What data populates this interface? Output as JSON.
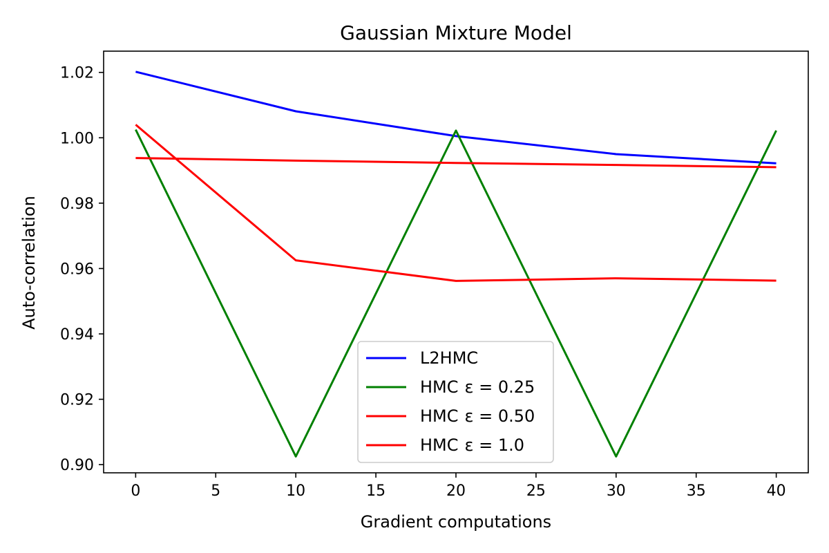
{
  "chart_data": {
    "type": "line",
    "title": "Gaussian Mixture Model",
    "xlabel": "Gradient computations",
    "ylabel": "Auto-correlation",
    "xlim": [
      -2,
      42
    ],
    "ylim": [
      0.8975,
      1.0265
    ],
    "xticks": [
      0,
      5,
      10,
      15,
      20,
      25,
      30,
      35,
      40
    ],
    "yticks": [
      0.9,
      0.92,
      0.94,
      0.96,
      0.98,
      1.0,
      1.02
    ],
    "ytick_labels": [
      "0.90",
      "0.92",
      "0.94",
      "0.96",
      "0.98",
      "1.00",
      "1.02"
    ],
    "grid": false,
    "legend_position": "lower center",
    "series": [
      {
        "name": "L2HMC",
        "legend_prefix": "L2HMC",
        "legend_math": "",
        "color": "#0000ff",
        "x": [
          0,
          10,
          20,
          30,
          40
        ],
        "y": [
          1.0202,
          1.0081,
          1.0005,
          0.995,
          0.9922
        ]
      },
      {
        "name": "HMC ε = 0.25",
        "legend_prefix": "HMC",
        "legend_math": "ε = 0.25",
        "color": "#008000",
        "x": [
          0,
          10,
          20,
          30,
          40
        ],
        "y": [
          1.0025,
          0.9025,
          1.0022,
          0.9025,
          1.0022
        ]
      },
      {
        "name": "HMC ε = 0.50",
        "legend_prefix": "HMC",
        "legend_math": "ε = 0.50",
        "color": "#ff0000",
        "x": [
          0,
          10,
          20,
          30,
          40
        ],
        "y": [
          1.004,
          0.9625,
          0.9562,
          0.957,
          0.9563
        ]
      },
      {
        "name": "HMC ε = 1.0",
        "legend_prefix": "HMC",
        "legend_math": "ε = 1.0",
        "color": "#ff0000",
        "x": [
          0,
          10,
          20,
          30,
          40
        ],
        "y": [
          0.9938,
          0.993,
          0.9923,
          0.9917,
          0.991
        ]
      }
    ]
  }
}
